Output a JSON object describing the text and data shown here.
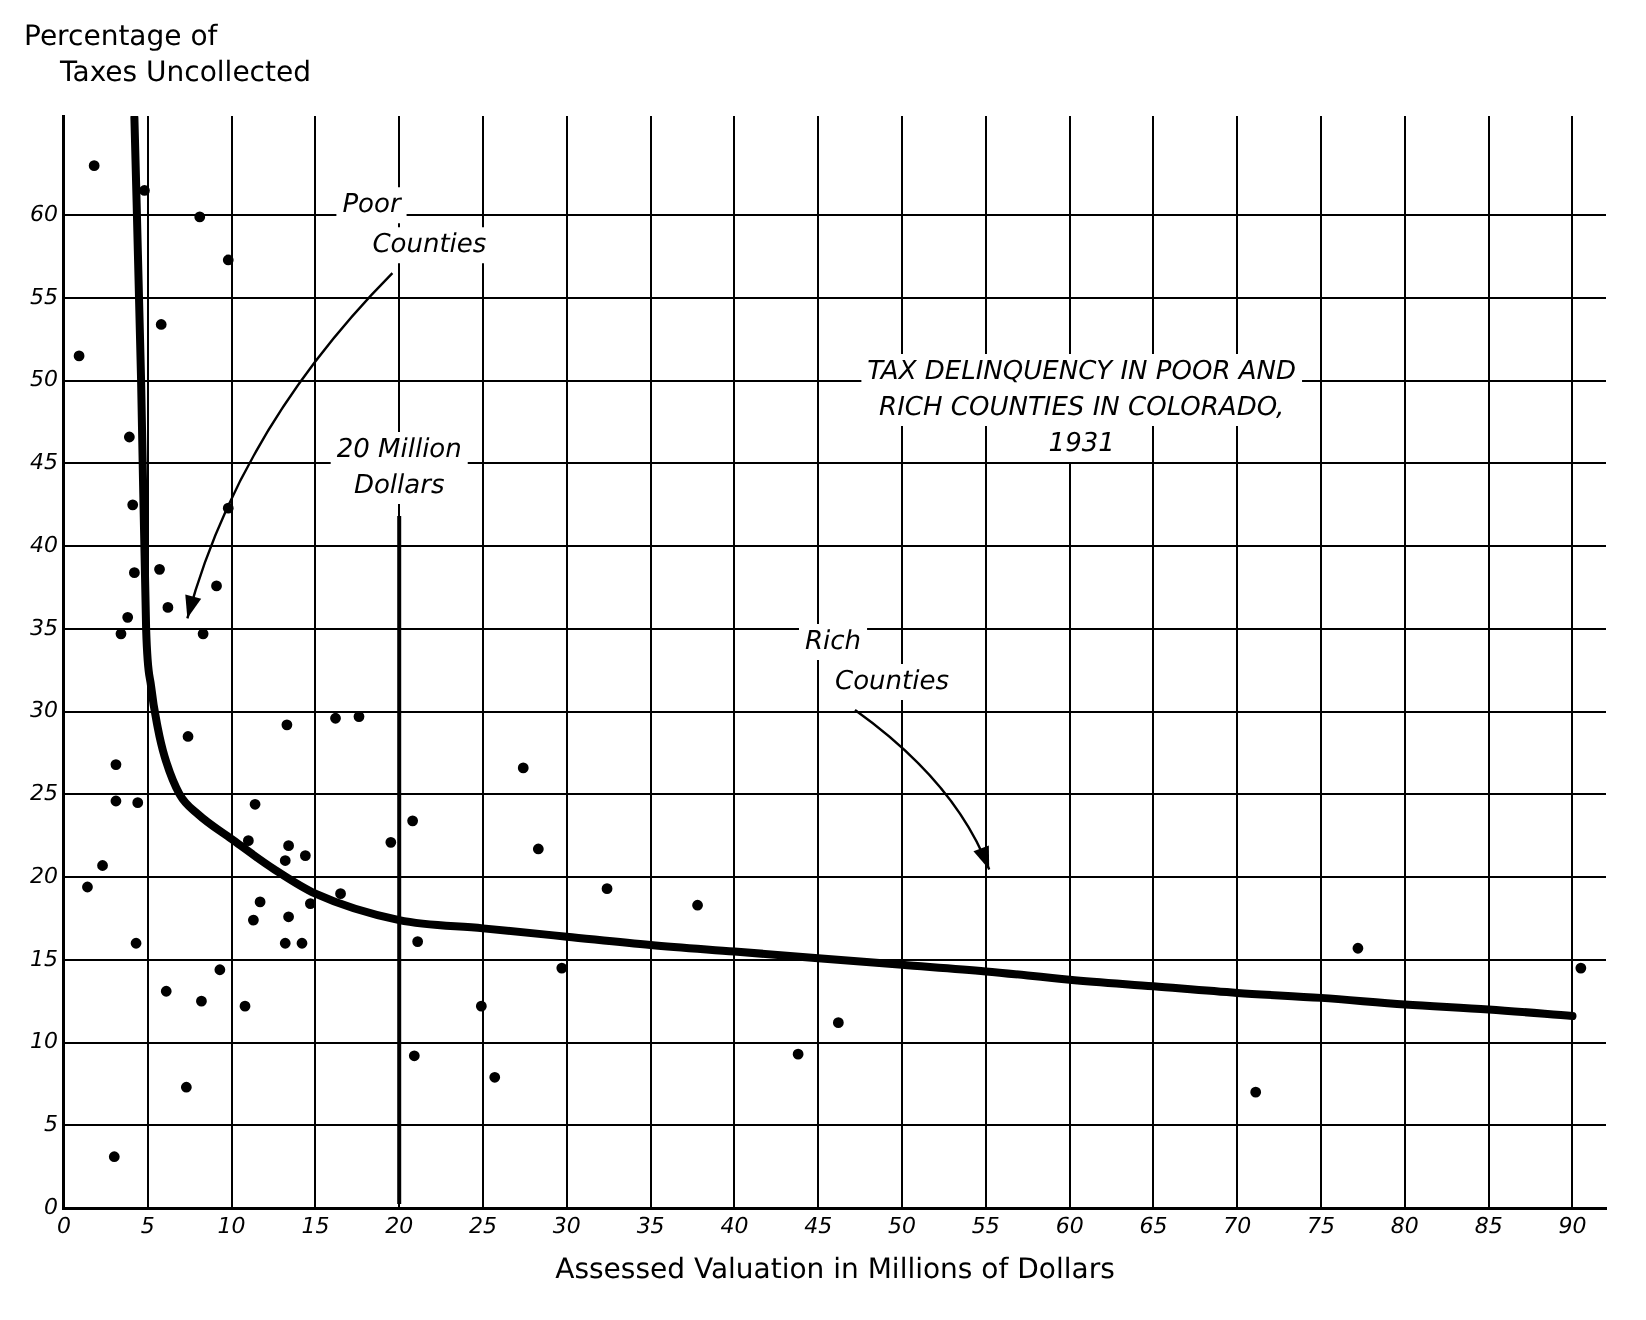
{
  "chart_data": {
    "type": "scatter",
    "title": "TAX DELINQUENCY IN POOR AND RICH COUNTIES IN COLORADO, 1931",
    "xlabel": "Assessed Valuation in Millions of Dollars",
    "ylabel": "Percentage of Taxes Uncollected",
    "xlim": [
      0,
      92
    ],
    "xticks": [
      0,
      5,
      10,
      15,
      20,
      25,
      30,
      35,
      40,
      45,
      50,
      55,
      60,
      65,
      70,
      75,
      80,
      85,
      90
    ],
    "ylim": [
      0,
      66
    ],
    "yticks": [
      0,
      5,
      10,
      15,
      20,
      25,
      30,
      35,
      40,
      45,
      50,
      55,
      60
    ],
    "grid": true,
    "marker": "circle",
    "series": [
      {
        "type": "scatter",
        "color": "#000000",
        "x": [
          1.8,
          4.8,
          8.1,
          9.8,
          5.8,
          0.9,
          3.9,
          4.1,
          9.8,
          4.2,
          5.7,
          9.1,
          6.2,
          3.8,
          3.4,
          8.3,
          7.4,
          3.1,
          3.1,
          4.4,
          11.4,
          13.3,
          16.2,
          17.6,
          11.0,
          13.4,
          13.2,
          14.4,
          19.5,
          20.8,
          2.3,
          1.4,
          11.7,
          16.5,
          14.7,
          11.3,
          13.4,
          4.3,
          13.2,
          14.2,
          21.1,
          9.3,
          6.1,
          8.2,
          10.8,
          24.9,
          20.9,
          7.3,
          3.0,
          25.7,
          27.4,
          28.3,
          32.4,
          37.8,
          29.7,
          43.8,
          46.2,
          77.2,
          90.5,
          71.1
        ],
        "values": [
          63.0,
          61.5,
          59.9,
          57.3,
          53.4,
          51.5,
          46.6,
          42.5,
          42.3,
          38.4,
          38.6,
          37.6,
          36.3,
          35.7,
          34.7,
          34.7,
          28.5,
          26.8,
          24.6,
          24.5,
          24.4,
          29.2,
          29.6,
          29.7,
          22.2,
          21.9,
          21.0,
          21.3,
          22.1,
          23.4,
          20.7,
          19.4,
          18.5,
          19.0,
          18.4,
          17.4,
          17.6,
          16.0,
          16.0,
          16.0,
          16.1,
          14.4,
          13.1,
          12.5,
          12.2,
          12.2,
          9.2,
          7.3,
          3.1,
          7.9,
          26.6,
          21.7,
          19.3,
          18.3,
          14.5,
          9.3,
          11.2,
          15.7,
          14.5,
          7.0
        ]
      },
      {
        "type": "line",
        "color": "#000000",
        "marker": "none",
        "x": [
          4.2,
          4.6,
          4.9,
          5.2,
          5.6,
          6.0,
          6.9,
          8.0,
          10.0,
          12.5,
          15.0,
          20.0,
          25.0,
          30.0,
          35.0,
          40.0,
          45.0,
          50.0,
          55.0,
          60.0,
          65.0,
          70.0,
          75.0,
          80.0,
          85.0,
          90.0
        ],
        "values": [
          65.9,
          50.0,
          35.0,
          31.5,
          29.0,
          27.3,
          25.0,
          23.8,
          22.3,
          20.5,
          19.0,
          17.4,
          16.9,
          16.4,
          15.9,
          15.5,
          15.1,
          14.7,
          14.3,
          13.8,
          13.4,
          13.0,
          12.7,
          12.3,
          12.0,
          11.6
        ]
      }
    ],
    "ref_lines": [
      {
        "axis": "x",
        "value": 20,
        "label": "20 Million Dollars"
      }
    ],
    "annotations": [
      "Poor Counties",
      "Rich Counties"
    ]
  }
}
